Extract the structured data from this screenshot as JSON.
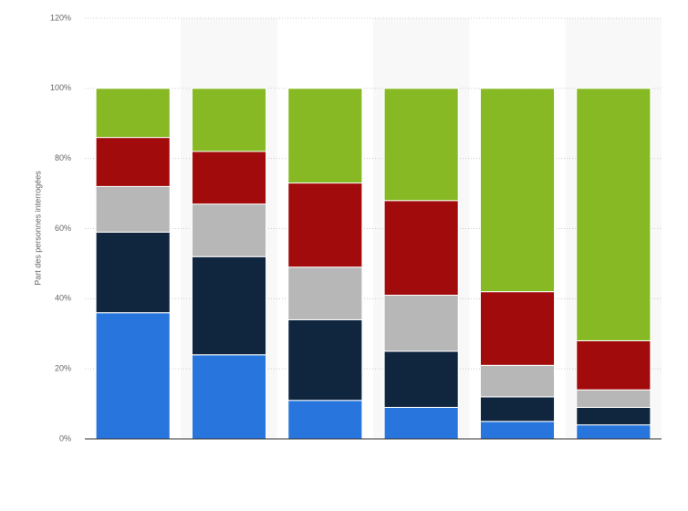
{
  "chart_data": {
    "type": "stacked-bar",
    "y_label": "Part des personnes interrogées",
    "categories": [
      null,
      null,
      null,
      null,
      null,
      null
    ],
    "series": [
      {
        "color": "#2876dd",
        "values": [
          36,
          24,
          11,
          9,
          5,
          4
        ]
      },
      {
        "color": "#10263f",
        "values": [
          23,
          28,
          23,
          16,
          7,
          5
        ]
      },
      {
        "color": "#b7b7b7",
        "values": [
          13,
          15,
          15,
          16,
          9,
          5
        ]
      },
      {
        "color": "#a20b0b",
        "values": [
          14,
          15,
          24,
          27,
          21,
          14
        ]
      },
      {
        "color": "#86b923",
        "values": [
          14,
          18,
          27,
          32,
          58,
          72
        ]
      }
    ],
    "ylim": [
      0,
      120
    ],
    "yticks": [
      {
        "value": 0,
        "label": "0%"
      },
      {
        "value": 20,
        "label": "20%"
      },
      {
        "value": 40,
        "label": "40%"
      },
      {
        "value": 60,
        "label": "60%"
      },
      {
        "value": 80,
        "label": "80%"
      },
      {
        "value": 100,
        "label": "100%"
      },
      {
        "value": 120,
        "label": "120%"
      }
    ],
    "grid": true
  }
}
